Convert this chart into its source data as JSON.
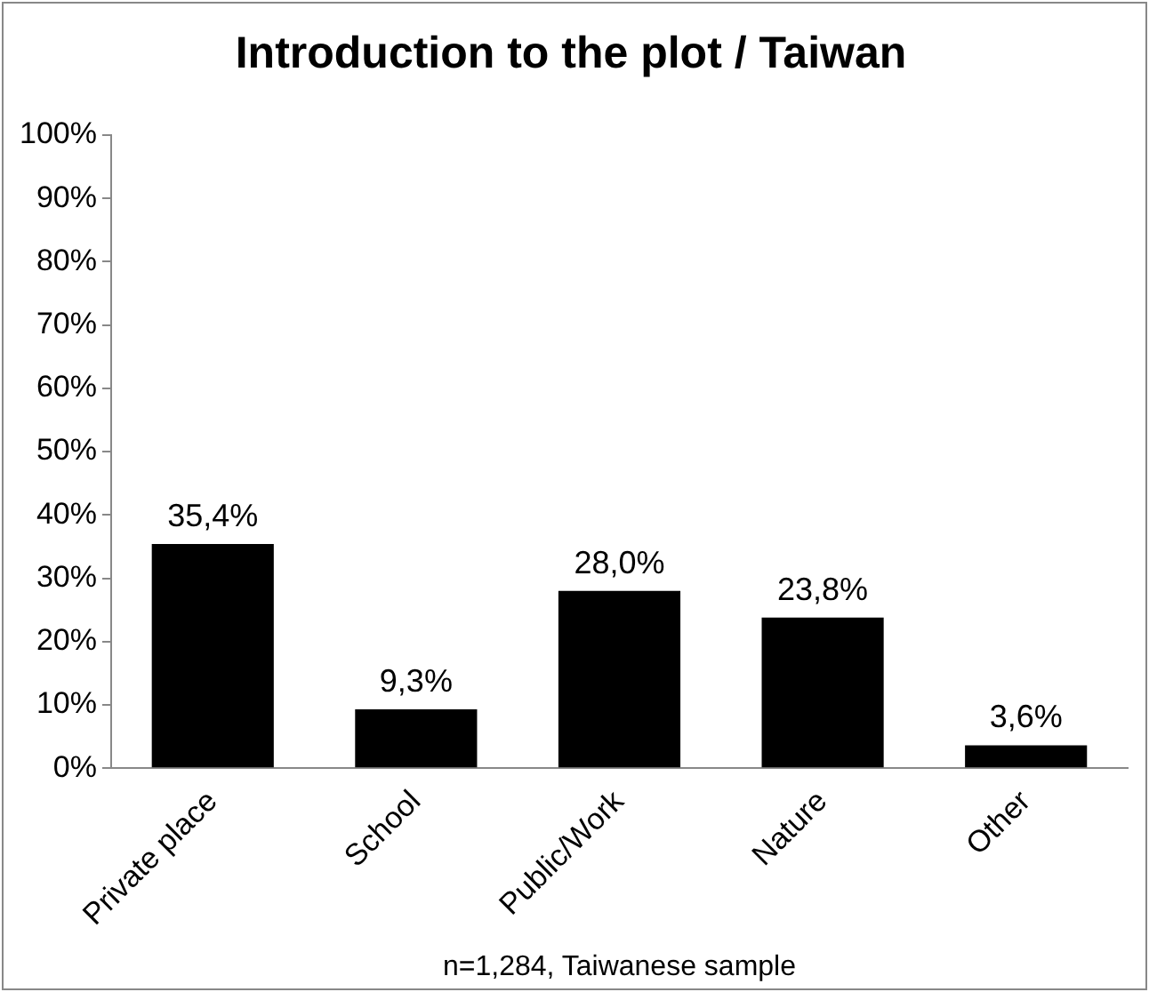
{
  "chart_data": {
    "type": "bar",
    "title": "Introduction to the plot / Taiwan",
    "categories": [
      "Private place",
      "School",
      "Public/Work",
      "Nature",
      "Other"
    ],
    "values": [
      35.4,
      9.3,
      28.0,
      23.8,
      3.6
    ],
    "color": "#000000",
    "value_labels": [
      "35,4%",
      "9,3%",
      "28,0%",
      "23,8%",
      "3,6%"
    ],
    "ylim": [
      0,
      100
    ],
    "yticks": [
      {
        "value": 0,
        "label": "0%"
      },
      {
        "value": 10,
        "label": "10%"
      },
      {
        "value": 20,
        "label": "20%"
      },
      {
        "value": 30,
        "label": "30%"
      },
      {
        "value": 40,
        "label": "40%"
      },
      {
        "value": 50,
        "label": "50%"
      },
      {
        "value": 60,
        "label": "60%"
      },
      {
        "value": 70,
        "label": "70%"
      },
      {
        "value": 80,
        "label": "80%"
      },
      {
        "value": 90,
        "label": "90%"
      },
      {
        "value": 100,
        "label": "100%"
      }
    ],
    "grid": false,
    "legend": false,
    "annotations": [
      "n=1,284, Taiwanese sample"
    ]
  }
}
